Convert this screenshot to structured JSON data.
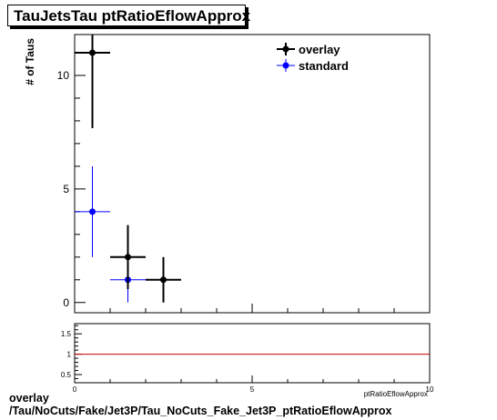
{
  "header": {
    "title": "TauJetsTau ptRatioEflowApprox"
  },
  "footer": {
    "line1": "overlay",
    "line2": "/Tau/NoCuts/Fake/Jet3P/Tau_NoCuts_Fake_Jet3P_ptRatioEflowApprox"
  },
  "colors": {
    "overlay": "#000000",
    "standard": "#0000ff",
    "ratio_line": "#cc0000"
  },
  "chart_data": [
    {
      "type": "scatter",
      "title": "TauJetsTau ptRatioEflowApprox",
      "xlabel": "ptRatioEflowApprox",
      "ylabel": "# of Taus",
      "xlim": [
        0,
        10
      ],
      "ylim": [
        -0.45,
        11.8
      ],
      "grid": false,
      "legend": "top-right",
      "y_ticks": [
        0,
        5,
        10
      ],
      "series": [
        {
          "name": "overlay",
          "color": "#000000",
          "points": [
            {
              "x": 0.5,
              "y": 11,
              "xerr": 0.5,
              "yerr": 3.32
            },
            {
              "x": 1.5,
              "y": 2,
              "xerr": 0.5,
              "yerr": 1.41
            },
            {
              "x": 2.5,
              "y": 1,
              "xerr": 0.5,
              "yerr": 1.0
            }
          ]
        },
        {
          "name": "standard",
          "color": "#0000ff",
          "points": [
            {
              "x": 0.5,
              "y": 4,
              "xerr": 0.5,
              "yerr": 2.0
            },
            {
              "x": 1.5,
              "y": 1,
              "xerr": 0.5,
              "yerr": 1.0
            }
          ]
        }
      ]
    },
    {
      "type": "line",
      "xlabel": "ptRatioEflowApprox",
      "xlim": [
        0,
        10
      ],
      "ylim": [
        0.3,
        1.75
      ],
      "x_ticks": [
        0,
        5,
        10
      ],
      "y_ticks": [
        0.5,
        1,
        1.5
      ],
      "y_tick_labels": [
        "0.5",
        "1",
        "1.5"
      ],
      "reference_line": 1
    }
  ]
}
